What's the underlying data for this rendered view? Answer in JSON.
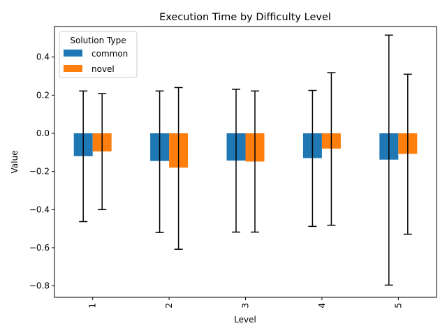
{
  "chart_data": {
    "type": "bar",
    "title": "Execution Time by Difficulty Level",
    "xlabel": "Level",
    "ylabel": "Value",
    "categories": [
      "1",
      "2",
      "3",
      "4",
      "5"
    ],
    "ylim": [
      -0.86,
      0.56
    ],
    "yticks": [
      -0.8,
      -0.6,
      -0.4,
      -0.2,
      0.0,
      0.2,
      0.4
    ],
    "ytick_labels": [
      "−0.8",
      "−0.6",
      "−0.4",
      "−0.2",
      "0.0",
      "0.2",
      "0.4"
    ],
    "grid": false,
    "legend": {
      "title": "Solution Type",
      "placement": "top-left"
    },
    "series": [
      {
        "name": "common",
        "color": "#1f77b4",
        "values": [
          -0.12,
          -0.145,
          -0.143,
          -0.13,
          -0.138
        ],
        "error_low": [
          -0.463,
          -0.52,
          -0.518,
          -0.488,
          -0.796
        ],
        "error_high": [
          0.222,
          0.222,
          0.231,
          0.225,
          0.515
        ]
      },
      {
        "name": "novel",
        "color": "#ff7f0e",
        "values": [
          -0.095,
          -0.18,
          -0.148,
          -0.08,
          -0.108
        ],
        "error_low": [
          -0.4,
          -0.608,
          -0.518,
          -0.482,
          -0.529
        ],
        "error_high": [
          0.208,
          0.24,
          0.222,
          0.318,
          0.31
        ]
      }
    ]
  }
}
